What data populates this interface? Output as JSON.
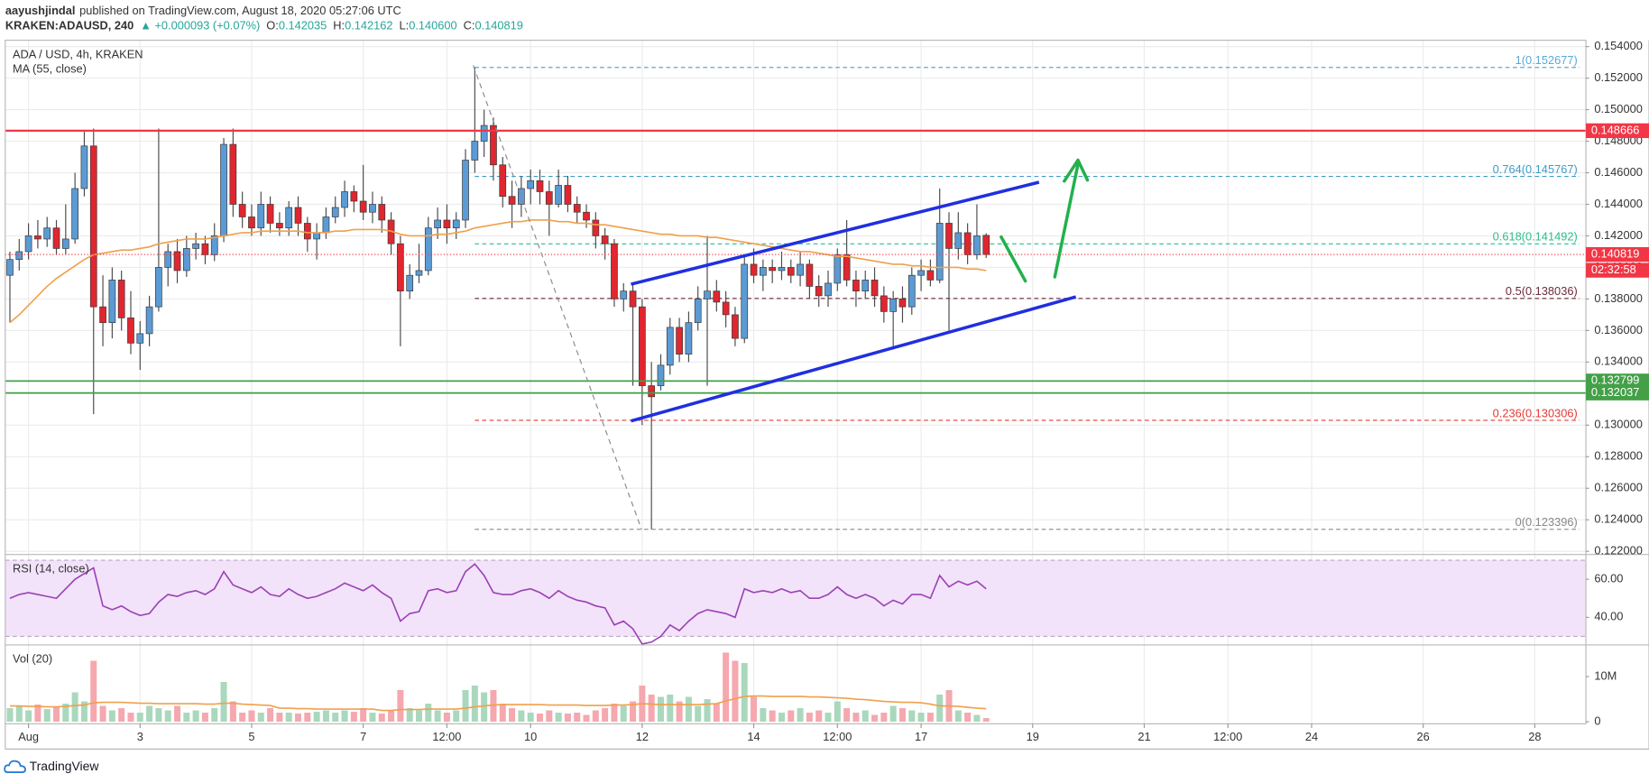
{
  "header": {
    "author": "aayushjindal",
    "published": "published on TradingView.com, August 18, 2020 05:27:06 UTC",
    "symbol": "KRAKEN:ADAUSD, 240",
    "change": "▲ +0.000093 (+0.07%)",
    "quote": [
      {
        "label": "O:",
        "value": "0.142035"
      },
      {
        "label": "H:",
        "value": "0.142162"
      },
      {
        "label": "L:",
        "value": "0.140600"
      },
      {
        "label": "C:",
        "value": "0.140819"
      }
    ]
  },
  "footer": {
    "brand": "TradingView"
  },
  "chart_data": [
    {
      "type": "candlestick",
      "title": "ADA / USD, 4h, KRAKEN",
      "grid": true,
      "up_color": "#5b9bd5",
      "down_color": "#e0262f",
      "xlim": [
        -0.5,
        169.5
      ],
      "xticks": [
        {
          "value": 2,
          "label": "Aug"
        },
        {
          "value": 14,
          "label": "3"
        },
        {
          "value": 26,
          "label": "5"
        },
        {
          "value": 38,
          "label": "7"
        },
        {
          "value": 47,
          "label": "12:00"
        },
        {
          "value": 56,
          "label": "10"
        },
        {
          "value": 68,
          "label": "12"
        },
        {
          "value": 80,
          "label": "14"
        },
        {
          "value": 89,
          "label": "12:00"
        },
        {
          "value": 98,
          "label": "17"
        },
        {
          "value": 110,
          "label": "19"
        },
        {
          "value": 122,
          "label": "21"
        },
        {
          "value": 131,
          "label": "12:00"
        },
        {
          "value": 140,
          "label": "24"
        },
        {
          "value": 152,
          "label": "26"
        },
        {
          "value": 164,
          "label": "28"
        }
      ],
      "ylim": [
        0.1218,
        0.1544
      ],
      "yticks": [
        {
          "value": 0.122,
          "label": "0.122000"
        },
        {
          "value": 0.124,
          "label": "0.124000"
        },
        {
          "value": 0.126,
          "label": "0.126000"
        },
        {
          "value": 0.128,
          "label": "0.128000"
        },
        {
          "value": 0.13,
          "label": "0.130000"
        },
        {
          "value": 0.132,
          "label": "0.132000"
        },
        {
          "value": 0.134,
          "label": "0.134000"
        },
        {
          "value": 0.136,
          "label": "0.136000"
        },
        {
          "value": 0.138,
          "label": "0.138000"
        },
        {
          "value": 0.14,
          "label": "0.140000"
        },
        {
          "value": 0.142,
          "label": "0.142000"
        },
        {
          "value": 0.144,
          "label": "0.144000"
        },
        {
          "value": 0.146,
          "label": "0.146000"
        },
        {
          "value": 0.148,
          "label": "0.148000"
        },
        {
          "value": 0.15,
          "label": "0.150000"
        },
        {
          "value": 0.152,
          "label": "0.152000"
        },
        {
          "value": 0.154,
          "label": "0.154000"
        }
      ],
      "open": [
        0.1395,
        0.1405,
        0.141,
        0.142,
        0.1418,
        0.1425,
        0.1412,
        0.1418,
        0.145,
        0.1477,
        0.1375,
        0.1365,
        0.1392,
        0.1368,
        0.1352,
        0.1358,
        0.1375,
        0.14,
        0.141,
        0.1398,
        0.1412,
        0.1415,
        0.1408,
        0.142,
        0.1478,
        0.144,
        0.1432,
        0.1425,
        0.144,
        0.1428,
        0.1425,
        0.1438,
        0.1428,
        0.1418,
        0.1422,
        0.1432,
        0.1438,
        0.1448,
        0.1442,
        0.1435,
        0.144,
        0.143,
        0.1415,
        0.1385,
        0.1395,
        0.1398,
        0.1425,
        0.143,
        0.1425,
        0.143,
        0.1468,
        0.148,
        0.149,
        0.1465,
        0.1445,
        0.144,
        0.145,
        0.1455,
        0.1448,
        0.144,
        0.1452,
        0.144,
        0.1435,
        0.143,
        0.142,
        0.1415,
        0.138,
        0.1385,
        0.1375,
        0.1325,
        0.1325,
        0.1338,
        0.1362,
        0.1345,
        0.1365,
        0.138,
        0.1385,
        0.1378,
        0.137,
        0.1355,
        0.1402,
        0.1395,
        0.14,
        0.1398,
        0.14,
        0.1395,
        0.1402,
        0.1388,
        0.1382,
        0.139,
        0.1408,
        0.1392,
        0.1385,
        0.1392,
        0.1382,
        0.1372,
        0.138,
        0.1375,
        0.1395,
        0.1398,
        0.1392,
        0.1428,
        0.1412,
        0.1422,
        0.1408,
        0.142035
      ],
      "high": [
        0.141,
        0.1418,
        0.1428,
        0.143,
        0.1432,
        0.143,
        0.144,
        0.146,
        0.1486,
        0.1488,
        0.1395,
        0.14,
        0.1398,
        0.1385,
        0.1366,
        0.1382,
        0.1488,
        0.1415,
        0.1418,
        0.142,
        0.1422,
        0.142,
        0.1428,
        0.1482,
        0.1488,
        0.1448,
        0.144,
        0.1448,
        0.1445,
        0.1435,
        0.1442,
        0.1445,
        0.1432,
        0.1428,
        0.1438,
        0.1445,
        0.1455,
        0.1452,
        0.1465,
        0.1448,
        0.1445,
        0.1435,
        0.142,
        0.1402,
        0.1415,
        0.1432,
        0.1438,
        0.144,
        0.1435,
        0.1475,
        0.152677,
        0.15,
        0.1495,
        0.147,
        0.1455,
        0.1458,
        0.1462,
        0.1462,
        0.1455,
        0.1462,
        0.1458,
        0.1445,
        0.144,
        0.1435,
        0.1425,
        0.1418,
        0.139,
        0.139,
        0.138,
        0.134,
        0.1345,
        0.1368,
        0.1368,
        0.1372,
        0.1388,
        0.142,
        0.1392,
        0.1385,
        0.1375,
        0.1408,
        0.1412,
        0.1405,
        0.1405,
        0.141,
        0.1405,
        0.141,
        0.1405,
        0.1395,
        0.1398,
        0.1412,
        0.143,
        0.1398,
        0.1398,
        0.14,
        0.1388,
        0.1385,
        0.1388,
        0.14,
        0.1405,
        0.1405,
        0.145,
        0.1435,
        0.1435,
        0.1428,
        0.144,
        0.142162
      ],
      "low": [
        0.1365,
        0.1398,
        0.1405,
        0.1412,
        0.1413,
        0.1408,
        0.1408,
        0.1415,
        0.1445,
        0.1307,
        0.135,
        0.1355,
        0.136,
        0.1345,
        0.1335,
        0.135,
        0.1372,
        0.1388,
        0.139,
        0.1394,
        0.1405,
        0.1402,
        0.1404,
        0.1416,
        0.1432,
        0.1425,
        0.142,
        0.142,
        0.1422,
        0.142,
        0.142,
        0.142,
        0.141,
        0.1405,
        0.1418,
        0.1428,
        0.1432,
        0.1435,
        0.143,
        0.1428,
        0.1422,
        0.1408,
        0.135,
        0.138,
        0.139,
        0.1395,
        0.1418,
        0.1415,
        0.1418,
        0.1425,
        0.146,
        0.147,
        0.1455,
        0.1438,
        0.1425,
        0.1432,
        0.144,
        0.144,
        0.142,
        0.1438,
        0.1435,
        0.1428,
        0.1425,
        0.1412,
        0.1405,
        0.1375,
        0.1372,
        0.1325,
        0.13,
        0.123396,
        0.1322,
        0.1332,
        0.134,
        0.134,
        0.136,
        0.1325,
        0.1372,
        0.1362,
        0.135,
        0.1352,
        0.139,
        0.1385,
        0.139,
        0.1392,
        0.139,
        0.1388,
        0.138,
        0.1375,
        0.1375,
        0.1385,
        0.1388,
        0.1375,
        0.138,
        0.1375,
        0.1365,
        0.1348,
        0.1365,
        0.137,
        0.1385,
        0.1388,
        0.139,
        0.136,
        0.1405,
        0.1402,
        0.1405,
        0.1406
      ],
      "close": [
        0.1405,
        0.141,
        0.142,
        0.1418,
        0.1425,
        0.1412,
        0.1418,
        0.145,
        0.1477,
        0.1375,
        0.1365,
        0.1392,
        0.1368,
        0.1352,
        0.1358,
        0.1375,
        0.14,
        0.141,
        0.1398,
        0.1412,
        0.1415,
        0.1408,
        0.142,
        0.1478,
        0.144,
        0.1432,
        0.1425,
        0.144,
        0.1428,
        0.1425,
        0.1438,
        0.1428,
        0.1418,
        0.1422,
        0.1432,
        0.1438,
        0.1448,
        0.1442,
        0.1435,
        0.144,
        0.143,
        0.1415,
        0.1385,
        0.1395,
        0.1398,
        0.1425,
        0.143,
        0.1425,
        0.143,
        0.1468,
        0.148,
        0.149,
        0.1465,
        0.1445,
        0.144,
        0.145,
        0.1455,
        0.1448,
        0.144,
        0.1452,
        0.144,
        0.1435,
        0.143,
        0.142,
        0.1415,
        0.138,
        0.1385,
        0.1375,
        0.1325,
        0.1318,
        0.1338,
        0.1362,
        0.1345,
        0.1365,
        0.138,
        0.1385,
        0.1378,
        0.137,
        0.1355,
        0.1402,
        0.1395,
        0.14,
        0.1398,
        0.14,
        0.1395,
        0.1402,
        0.1388,
        0.1382,
        0.139,
        0.1408,
        0.1392,
        0.1385,
        0.1392,
        0.1382,
        0.1372,
        0.138,
        0.1375,
        0.1395,
        0.1398,
        0.1392,
        0.1428,
        0.1412,
        0.1422,
        0.1408,
        0.142,
        0.140819
      ],
      "series": [
        {
          "name": "MA (55, close)",
          "color": "#f0a04b",
          "values": [
            0.1365,
            0.137,
            0.1376,
            0.1382,
            0.1388,
            0.1393,
            0.1397,
            0.1401,
            0.1405,
            0.1408,
            0.1409,
            0.141,
            0.1411,
            0.1411,
            0.1412,
            0.1413,
            0.1415,
            0.1416,
            0.1417,
            0.1418,
            0.1418,
            0.1418,
            0.1419,
            0.142,
            0.1421,
            0.1422,
            0.1422,
            0.1423,
            0.1423,
            0.1423,
            0.1423,
            0.1423,
            0.1422,
            0.1422,
            0.1422,
            0.1423,
            0.1423,
            0.1424,
            0.1424,
            0.1424,
            0.1424,
            0.1423,
            0.1421,
            0.142,
            0.142,
            0.142,
            0.1421,
            0.1421,
            0.1422,
            0.1423,
            0.1425,
            0.1426,
            0.1427,
            0.1428,
            0.1429,
            0.1429,
            0.143,
            0.143,
            0.143,
            0.1429,
            0.1429,
            0.1428,
            0.1428,
            0.1427,
            0.1427,
            0.1426,
            0.1425,
            0.1424,
            0.1423,
            0.1422,
            0.1421,
            0.1421,
            0.142,
            0.142,
            0.142,
            0.1419,
            0.1419,
            0.1418,
            0.1417,
            0.1416,
            0.1415,
            0.1414,
            0.1413,
            0.1412,
            0.1411,
            0.141,
            0.141,
            0.1409,
            0.1408,
            0.1407,
            0.1407,
            0.1406,
            0.1405,
            0.1404,
            0.1403,
            0.1402,
            0.1402,
            0.1401,
            0.1401,
            0.14,
            0.14,
            0.14,
            0.14,
            0.1399,
            0.1399,
            0.1398
          ]
        }
      ],
      "levels": [
        {
          "value": 0.148666,
          "color": "#f23645",
          "width": 2
        },
        {
          "value": 0.132799,
          "color": "#43a047",
          "width": 1.5
        },
        {
          "value": 0.132037,
          "color": "#43a047",
          "width": 1.5
        }
      ],
      "last_price": {
        "value": 0.140819,
        "countdown": "02:32:58",
        "color": "#f23645"
      },
      "fib": {
        "x_from": 50,
        "levels": [
          {
            "value": 0.152677,
            "label": "1(0.152677)",
            "color": "#5aa9d6"
          },
          {
            "value": 0.145767,
            "label": "0.764(0.145767)",
            "color": "#3d9cc8"
          },
          {
            "value": 0.141492,
            "label": "0.618(0.141492)",
            "color": "#2bbd8e"
          },
          {
            "value": 0.138036,
            "label": "0.5(0.138036)",
            "color": "#6d2b3b"
          },
          {
            "value": 0.130306,
            "label": "0.236(0.130306)",
            "color": "#e53935"
          },
          {
            "value": 0.123396,
            "label": "0(0.123396)",
            "color": "#888888"
          }
        ]
      }
    },
    {
      "type": "line",
      "title": "RSI (14, close)",
      "ylim": [
        25.5,
        73
      ],
      "yticks": [
        {
          "value": 40,
          "label": "40.00"
        },
        {
          "value": 60,
          "label": "60.00"
        }
      ],
      "band": [
        30,
        70
      ],
      "band_color": "#f2e3fa",
      "series": [
        {
          "color": "#9c42b5",
          "values": [
            50,
            52,
            53,
            52,
            51,
            50,
            55,
            60,
            63,
            66,
            46,
            44,
            46,
            43,
            41,
            42,
            48,
            52,
            51,
            53,
            54,
            52,
            55,
            64,
            57,
            55,
            53,
            56,
            52,
            51,
            55,
            52,
            50,
            51,
            53,
            55,
            58,
            56,
            54,
            57,
            53,
            50,
            38,
            42,
            43,
            54,
            55,
            53,
            54,
            64,
            68,
            62,
            53,
            52,
            52,
            54,
            55,
            53,
            50,
            54,
            51,
            49,
            48,
            46,
            45,
            36,
            38,
            34,
            26,
            27,
            30,
            36,
            33,
            38,
            42,
            44,
            43,
            42,
            40,
            55,
            53,
            54,
            53,
            55,
            53,
            54,
            50,
            50,
            52,
            56,
            52,
            50,
            52,
            50,
            46,
            49,
            47,
            52,
            52,
            50,
            62,
            56,
            59,
            57,
            59,
            55
          ]
        }
      ]
    },
    {
      "type": "bar",
      "title": "Vol (20)",
      "ylim": [
        -0.47,
        17
      ],
      "yticks": [
        0,
        {
          "value": 10,
          "label": "10M"
        }
      ],
      "up_color": "#a9d8bd",
      "down_color": "#f5a8ae",
      "values": [
        3.0,
        3.5,
        2.5,
        3.8,
        2.8,
        3.2,
        4.0,
        6.5,
        4.5,
        13.5,
        3.5,
        2.5,
        3.0,
        2.0,
        2.0,
        3.5,
        3.0,
        2.5,
        3.5,
        2.0,
        2.5,
        2.0,
        3.0,
        8.8,
        4.5,
        2.0,
        2.5,
        2.0,
        3.0,
        2.0,
        2.0,
        1.8,
        2.0,
        2.2,
        2.5,
        2.0,
        2.5,
        2.2,
        3.0,
        2.0,
        1.8,
        2.5,
        7.0,
        3.0,
        2.5,
        4.0,
        2.5,
        2.0,
        2.5,
        7.0,
        8.0,
        6.5,
        7.0,
        4.0,
        3.0,
        2.5,
        2.0,
        1.8,
        2.5,
        2.0,
        1.8,
        2.0,
        1.5,
        2.5,
        3.0,
        4.0,
        3.5,
        4.5,
        8.0,
        6.0,
        5.5,
        6.0,
        4.5,
        5.5,
        3.5,
        5.0,
        4.0,
        15.3,
        13.5,
        13.0,
        5.5,
        3.0,
        2.5,
        2.0,
        2.5,
        3.0,
        2.0,
        2.5,
        2.0,
        4.5,
        3.0,
        2.0,
        2.5,
        1.5,
        2.0,
        3.5,
        3.0,
        2.5,
        2.0,
        2.0,
        6.0,
        7.0,
        2.5,
        2.0,
        1.5,
        0.8
      ],
      "series": [
        {
          "color": "#f0a04b",
          "values": [
            3.5,
            3.5,
            3.4,
            3.4,
            3.3,
            3.3,
            3.4,
            3.6,
            3.7,
            4.2,
            4.3,
            4.3,
            4.3,
            4.2,
            4.1,
            4.1,
            4.0,
            4.0,
            4.0,
            4.0,
            4.0,
            3.9,
            3.9,
            4.1,
            4.1,
            3.9,
            3.8,
            3.7,
            3.6,
            3.0,
            3.0,
            2.9,
            2.9,
            2.8,
            2.8,
            2.8,
            2.8,
            2.8,
            2.8,
            2.8,
            2.5,
            2.5,
            2.7,
            2.7,
            2.7,
            2.8,
            2.8,
            2.8,
            2.8,
            3.0,
            3.3,
            3.5,
            3.7,
            3.8,
            3.8,
            3.8,
            3.8,
            3.8,
            3.7,
            3.7,
            3.7,
            3.7,
            3.6,
            3.6,
            3.6,
            3.7,
            3.7,
            3.8,
            4.0,
            3.9,
            3.8,
            3.8,
            3.8,
            3.8,
            3.8,
            3.9,
            4.0,
            4.6,
            5.1,
            5.6,
            5.7,
            5.7,
            5.6,
            5.6,
            5.6,
            5.6,
            5.5,
            5.5,
            5.4,
            5.3,
            5.2,
            5.0,
            4.9,
            4.7,
            4.5,
            4.4,
            4.3,
            4.3,
            4.2,
            3.9,
            3.5,
            3.5,
            3.4,
            3.2,
            3.0,
            2.9
          ]
        }
      ]
    }
  ]
}
